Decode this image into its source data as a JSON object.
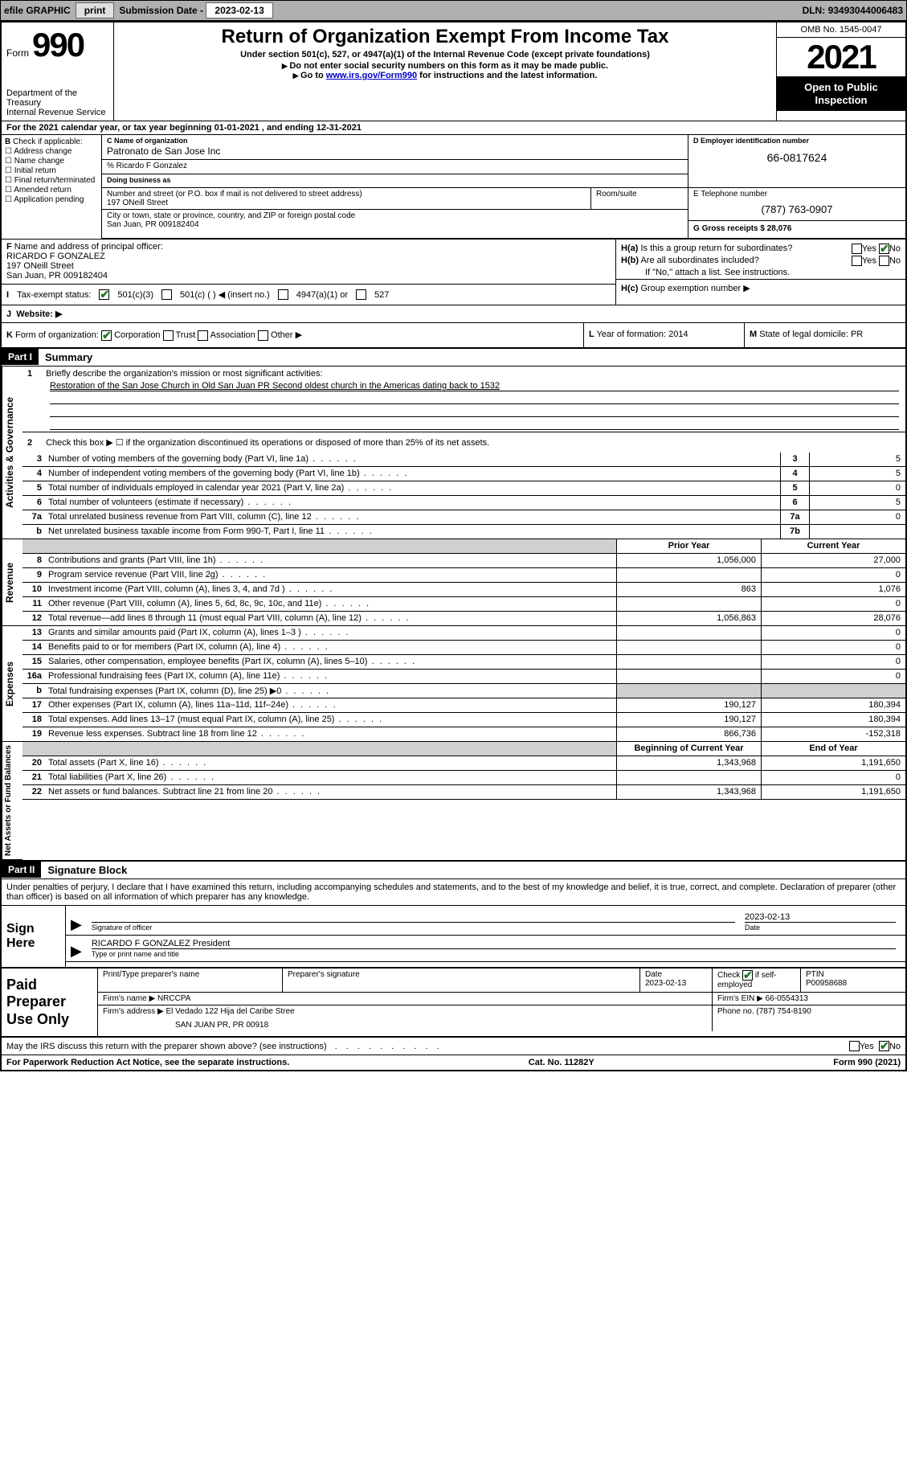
{
  "topbar": {
    "efile": "efile GRAPHIC",
    "print": "print",
    "submission_label": "Submission Date - ",
    "submission_date": "2023-02-13",
    "dln_label": "DLN: ",
    "dln": "93493044006483"
  },
  "header": {
    "form_label": "Form",
    "form_number": "990",
    "title": "Return of Organization Exempt From Income Tax",
    "subtitle1": "Under section 501(c), 527, or 4947(a)(1) of the Internal Revenue Code (except private foundations)",
    "subtitle2": "Do not enter social security numbers on this form as it may be made public.",
    "subtitle3_pre": "Go to ",
    "subtitle3_link": "www.irs.gov/Form990",
    "subtitle3_post": " for instructions and the latest information.",
    "dept": "Department of the Treasury",
    "irs": "Internal Revenue Service",
    "omb": "OMB No. 1545-0047",
    "year": "2021",
    "inspect1": "Open to Public",
    "inspect2": "Inspection"
  },
  "row_a": {
    "label": "A",
    "text": "For the 2021 calendar year, or tax year beginning 01-01-2021   , and ending 12-31-2021"
  },
  "col_b": {
    "label": "B",
    "check_label": "Check if applicable:",
    "opts": [
      "Address change",
      "Name change",
      "Initial return",
      "Final return/terminated",
      "Amended return",
      "Application pending"
    ]
  },
  "section_c": {
    "name_label": "C Name of organization",
    "name": "Patronato de San Jose Inc",
    "care_of": "% Ricardo F Gonzalez",
    "dba_label": "Doing business as",
    "street_label": "Number and street (or P.O. box if mail is not delivered to street address)",
    "street": "197 ONeill Street",
    "room_label": "Room/suite",
    "city_label": "City or town, state or province, country, and ZIP or foreign postal code",
    "city": "San Juan, PR  009182404"
  },
  "section_d": {
    "label": "D Employer identification number",
    "ein": "66-0817624"
  },
  "section_e": {
    "label": "E Telephone number",
    "phone": "(787) 763-0907"
  },
  "section_g": {
    "label": "G",
    "text": "Gross receipts $ ",
    "value": "28,076"
  },
  "section_f": {
    "label": "F",
    "text": "Name and address of principal officer:",
    "name": "RICARDO F GONZALEZ",
    "street": "197 ONeill Street",
    "city": "San Juan, PR  009182404"
  },
  "section_h": {
    "a_label": "H(a)",
    "a_text": "Is this a group return for subordinates?",
    "a_yes": "Yes",
    "a_no": "No",
    "b_label": "H(b)",
    "b_text": "Are all subordinates included?",
    "b_note": "If \"No,\" attach a list. See instructions.",
    "c_label": "H(c)",
    "c_text": "Group exemption number ▶"
  },
  "row_i": {
    "label": "I",
    "text": "Tax-exempt status:",
    "opt1": "501(c)(3)",
    "opt2": "501(c) (   ) ◀ (insert no.)",
    "opt3": "4947(a)(1) or",
    "opt4": "527"
  },
  "row_j": {
    "label": "J",
    "text": "Website: ▶"
  },
  "row_k": {
    "label": "K",
    "text": "Form of organization:",
    "opts": [
      "Corporation",
      "Trust",
      "Association",
      "Other ▶"
    ]
  },
  "row_l": {
    "label": "L",
    "text": "Year of formation: ",
    "value": "2014"
  },
  "row_m": {
    "label": "M",
    "text": "State of legal domicile: ",
    "value": "PR"
  },
  "part1": {
    "part": "Part I",
    "title": "Summary",
    "vlabels": {
      "ag": "Activities & Governance",
      "rev": "Revenue",
      "exp": "Expenses",
      "na": "Net Assets or\nFund Balances"
    },
    "line1_label": "1",
    "line1_text": "Briefly describe the organization's mission or most significant activities:",
    "mission": "Restoration of the San Jose Church in Old San Juan PR Second oldest church in the Americas dating back to 1532",
    "line2_label": "2",
    "line2_text": "Check this box ▶ ☐  if the organization discontinued its operations or disposed of more than 25% of its net assets.",
    "lines_ag": [
      {
        "n": "3",
        "t": "Number of voting members of the governing body (Part VI, line 1a)",
        "box": "3",
        "v": "5"
      },
      {
        "n": "4",
        "t": "Number of independent voting members of the governing body (Part VI, line 1b)",
        "box": "4",
        "v": "5"
      },
      {
        "n": "5",
        "t": "Total number of individuals employed in calendar year 2021 (Part V, line 2a)",
        "box": "5",
        "v": "0"
      },
      {
        "n": "6",
        "t": "Total number of volunteers (estimate if necessary)",
        "box": "6",
        "v": "5"
      },
      {
        "n": "7a",
        "t": "Total unrelated business revenue from Part VIII, column (C), line 12",
        "box": "7a",
        "v": "0"
      },
      {
        "n": "b",
        "t": "Net unrelated business taxable income from Form 990-T, Part I, line 11",
        "box": "7b",
        "v": ""
      }
    ],
    "col_prior": "Prior Year",
    "col_current": "Current Year",
    "lines_rev": [
      {
        "n": "8",
        "t": "Contributions and grants (Part VIII, line 1h)",
        "p": "1,056,000",
        "c": "27,000"
      },
      {
        "n": "9",
        "t": "Program service revenue (Part VIII, line 2g)",
        "p": "",
        "c": "0"
      },
      {
        "n": "10",
        "t": "Investment income (Part VIII, column (A), lines 3, 4, and 7d )",
        "p": "863",
        "c": "1,076"
      },
      {
        "n": "11",
        "t": "Other revenue (Part VIII, column (A), lines 5, 6d, 8c, 9c, 10c, and 11e)",
        "p": "",
        "c": "0"
      },
      {
        "n": "12",
        "t": "Total revenue—add lines 8 through 11 (must equal Part VIII, column (A), line 12)",
        "p": "1,056,863",
        "c": "28,076"
      }
    ],
    "lines_exp": [
      {
        "n": "13",
        "t": "Grants and similar amounts paid (Part IX, column (A), lines 1–3 )",
        "p": "",
        "c": "0"
      },
      {
        "n": "14",
        "t": "Benefits paid to or for members (Part IX, column (A), line 4)",
        "p": "",
        "c": "0"
      },
      {
        "n": "15",
        "t": "Salaries, other compensation, employee benefits (Part IX, column (A), lines 5–10)",
        "p": "",
        "c": "0"
      },
      {
        "n": "16a",
        "t": "Professional fundraising fees (Part IX, column (A), line 11e)",
        "p": "",
        "c": "0"
      },
      {
        "n": "b",
        "t": "Total fundraising expenses (Part IX, column (D), line 25) ▶0",
        "p": "GREY",
        "c": "GREY"
      },
      {
        "n": "17",
        "t": "Other expenses (Part IX, column (A), lines 11a–11d, 11f–24e)",
        "p": "190,127",
        "c": "180,394"
      },
      {
        "n": "18",
        "t": "Total expenses. Add lines 13–17 (must equal Part IX, column (A), line 25)",
        "p": "190,127",
        "c": "180,394"
      },
      {
        "n": "19",
        "t": "Revenue less expenses. Subtract line 18 from line 12",
        "p": "866,736",
        "c": "-152,318"
      }
    ],
    "col_begin": "Beginning of Current Year",
    "col_end": "End of Year",
    "lines_na": [
      {
        "n": "20",
        "t": "Total assets (Part X, line 16)",
        "p": "1,343,968",
        "c": "1,191,650"
      },
      {
        "n": "21",
        "t": "Total liabilities (Part X, line 26)",
        "p": "",
        "c": "0"
      },
      {
        "n": "22",
        "t": "Net assets or fund balances. Subtract line 21 from line 20",
        "p": "1,343,968",
        "c": "1,191,650"
      }
    ]
  },
  "part2": {
    "part": "Part II",
    "title": "Signature Block",
    "intro": "Under penalties of perjury, I declare that I have examined this return, including accompanying schedules and statements, and to the best of my knowledge and belief, it is true, correct, and complete. Declaration of preparer (other than officer) is based on all information of which preparer has any knowledge.",
    "sign_here": "Sign Here",
    "sig_label": "Signature of officer",
    "date_label": "Date",
    "sig_date": "2023-02-13",
    "officer": "RICARDO F GONZALEZ  President",
    "type_label": "Type or print name and title"
  },
  "preparer": {
    "title": "Paid Preparer Use Only",
    "name_label": "Print/Type preparer's name",
    "sig_label": "Preparer's signature",
    "date_label": "Date",
    "date": "2023-02-13",
    "check_label": "Check",
    "self_emp": "if self-employed",
    "ptin_label": "PTIN",
    "ptin": "P00958688",
    "firm_name_label": "Firm's name    ▶ ",
    "firm_name": "NRCCPA",
    "firm_ein_label": "Firm's EIN ▶ ",
    "firm_ein": "66-0554313",
    "firm_addr_label": "Firm's address ▶ ",
    "firm_addr1": "El Vedado 122 Hija del Caribe Stree",
    "firm_addr2": "SAN JUAN PR, PR  00918",
    "phone_label": "Phone no. ",
    "phone": "(787) 754-8190"
  },
  "discuss": {
    "text": "May the IRS discuss this return with the preparer shown above? (see instructions)",
    "yes": "Yes",
    "no": "No"
  },
  "footer": {
    "left": "For Paperwork Reduction Act Notice, see the separate instructions.",
    "mid": "Cat. No. 11282Y",
    "right_pre": "Form ",
    "right_form": "990",
    "right_post": " (2021)"
  },
  "colors": {
    "topbar_bg": "#b0b0b0",
    "link": "#0000cc",
    "check_green": "#1a7a1a",
    "grey_fill": "#d0d0d0"
  }
}
